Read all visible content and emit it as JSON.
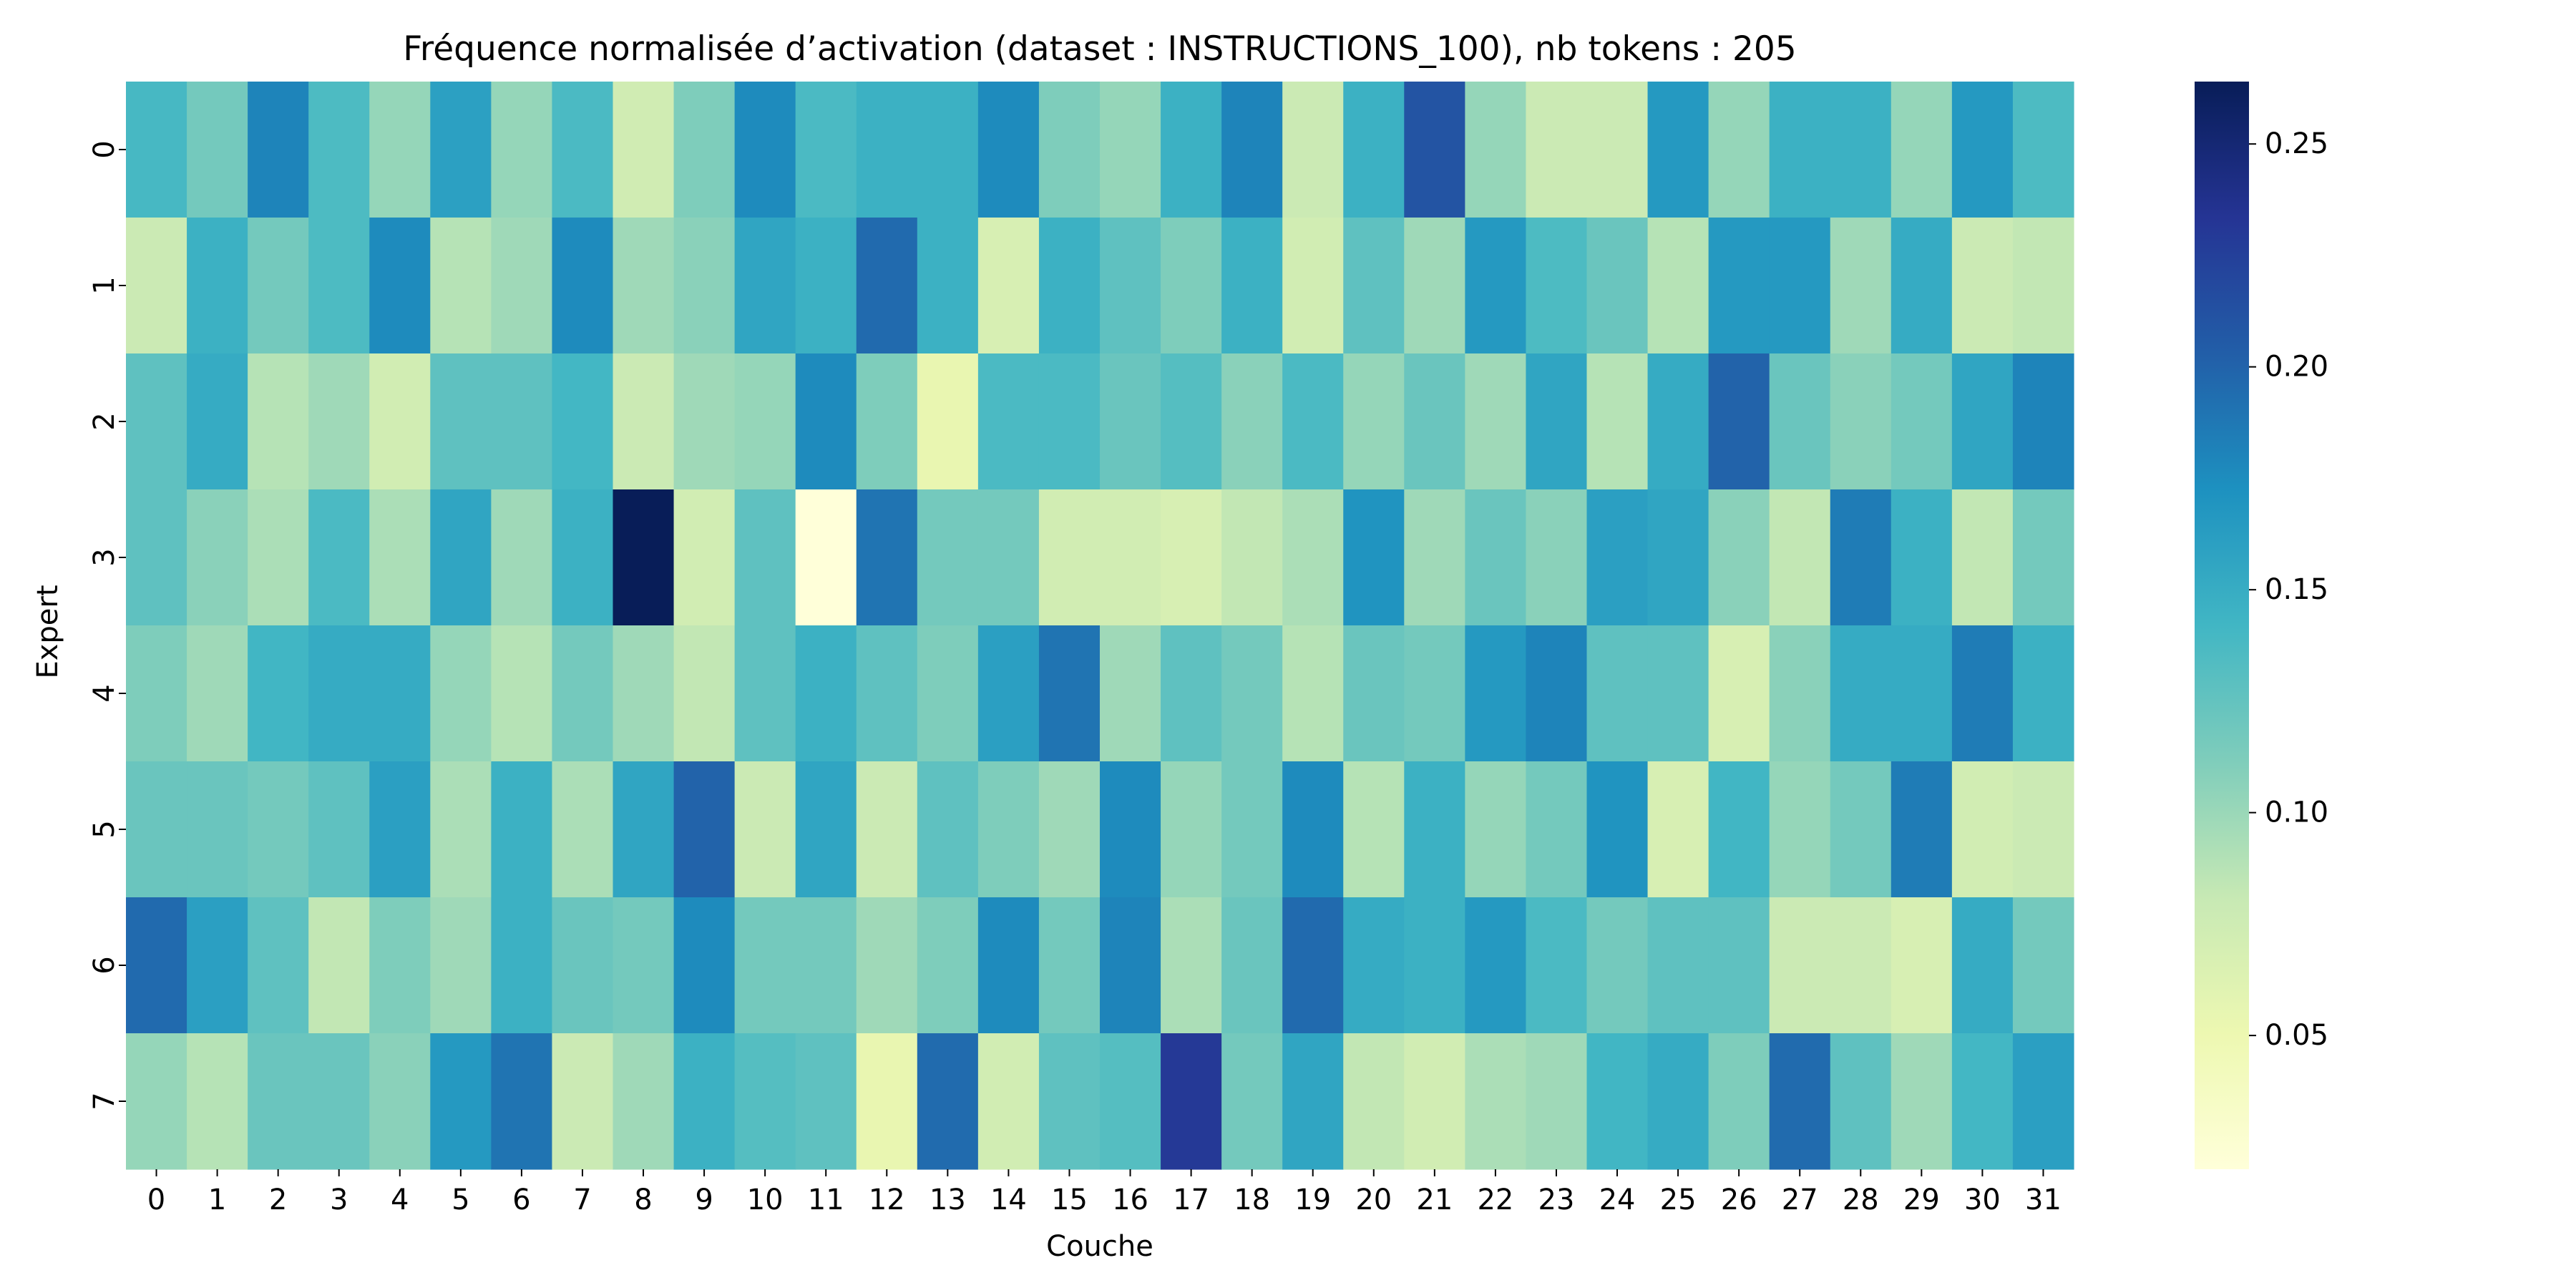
{
  "chart_data": {
    "type": "heatmap",
    "title": "Fréquence normalisée d’activation (dataset : INSTRUCTIONS_100), nb tokens : 205",
    "xlabel": "Couche",
    "ylabel": "Expert",
    "x_categories": [
      "0",
      "1",
      "2",
      "3",
      "4",
      "5",
      "6",
      "7",
      "8",
      "9",
      "10",
      "11",
      "12",
      "13",
      "14",
      "15",
      "16",
      "17",
      "18",
      "19",
      "20",
      "21",
      "22",
      "23",
      "24",
      "25",
      "26",
      "27",
      "28",
      "29",
      "30",
      "31"
    ],
    "y_categories": [
      "0",
      "1",
      "2",
      "3",
      "4",
      "5",
      "6",
      "7"
    ],
    "values": [
      [
        0.139,
        0.117,
        0.18,
        0.136,
        0.102,
        0.16,
        0.102,
        0.137,
        0.074,
        0.112,
        0.176,
        0.137,
        0.146,
        0.146,
        0.176,
        0.112,
        0.102,
        0.146,
        0.18,
        0.078,
        0.146,
        0.21,
        0.102,
        0.078,
        0.078,
        0.166,
        0.102,
        0.146,
        0.146,
        0.102,
        0.166,
        0.136
      ],
      [
        0.078,
        0.146,
        0.117,
        0.136,
        0.176,
        0.088,
        0.098,
        0.176,
        0.098,
        0.107,
        0.156,
        0.146,
        0.196,
        0.146,
        0.068,
        0.146,
        0.127,
        0.112,
        0.146,
        0.073,
        0.127,
        0.098,
        0.166,
        0.136,
        0.122,
        0.088,
        0.166,
        0.166,
        0.098,
        0.151,
        0.078,
        0.083
      ],
      [
        0.127,
        0.151,
        0.088,
        0.098,
        0.073,
        0.127,
        0.127,
        0.141,
        0.078,
        0.098,
        0.102,
        0.176,
        0.112,
        0.054,
        0.137,
        0.137,
        0.122,
        0.132,
        0.107,
        0.137,
        0.102,
        0.122,
        0.098,
        0.156,
        0.088,
        0.151,
        0.2,
        0.122,
        0.107,
        0.117,
        0.156,
        0.18
      ],
      [
        0.127,
        0.107,
        0.093,
        0.137,
        0.093,
        0.156,
        0.098,
        0.146,
        0.264,
        0.073,
        0.127,
        0.02,
        0.19,
        0.117,
        0.117,
        0.073,
        0.073,
        0.068,
        0.083,
        0.093,
        0.17,
        0.098,
        0.122,
        0.107,
        0.161,
        0.156,
        0.107,
        0.083,
        0.185,
        0.146,
        0.083,
        0.117
      ],
      [
        0.112,
        0.098,
        0.142,
        0.151,
        0.151,
        0.102,
        0.088,
        0.117,
        0.098,
        0.083,
        0.127,
        0.146,
        0.127,
        0.112,
        0.161,
        0.19,
        0.098,
        0.127,
        0.117,
        0.088,
        0.122,
        0.117,
        0.166,
        0.18,
        0.127,
        0.127,
        0.068,
        0.107,
        0.151,
        0.151,
        0.185,
        0.146
      ],
      [
        0.122,
        0.122,
        0.117,
        0.127,
        0.161,
        0.093,
        0.146,
        0.093,
        0.156,
        0.2,
        0.078,
        0.156,
        0.078,
        0.127,
        0.112,
        0.098,
        0.176,
        0.102,
        0.117,
        0.176,
        0.088,
        0.146,
        0.102,
        0.117,
        0.17,
        0.068,
        0.142,
        0.102,
        0.117,
        0.185,
        0.073,
        0.078
      ],
      [
        0.196,
        0.161,
        0.127,
        0.083,
        0.112,
        0.098,
        0.146,
        0.122,
        0.117,
        0.176,
        0.117,
        0.117,
        0.098,
        0.112,
        0.176,
        0.117,
        0.18,
        0.093,
        0.122,
        0.196,
        0.151,
        0.146,
        0.166,
        0.137,
        0.117,
        0.127,
        0.127,
        0.078,
        0.078,
        0.068,
        0.151,
        0.117
      ],
      [
        0.102,
        0.088,
        0.122,
        0.122,
        0.107,
        0.166,
        0.19,
        0.078,
        0.098,
        0.146,
        0.132,
        0.127,
        0.054,
        0.195,
        0.073,
        0.127,
        0.132,
        0.23,
        0.117,
        0.156,
        0.083,
        0.073,
        0.093,
        0.098,
        0.142,
        0.151,
        0.112,
        0.195,
        0.127,
        0.098,
        0.141,
        0.161
      ]
    ],
    "colormap": "YlGnBu",
    "colorbar": {
      "min": 0.02,
      "max": 0.264,
      "ticks": [
        "0.05",
        "0.10",
        "0.15",
        "0.20",
        "0.25"
      ],
      "tick_values": [
        0.05,
        0.1,
        0.15,
        0.2,
        0.25
      ]
    },
    "grid": false,
    "legend": "colorbar-right"
  }
}
